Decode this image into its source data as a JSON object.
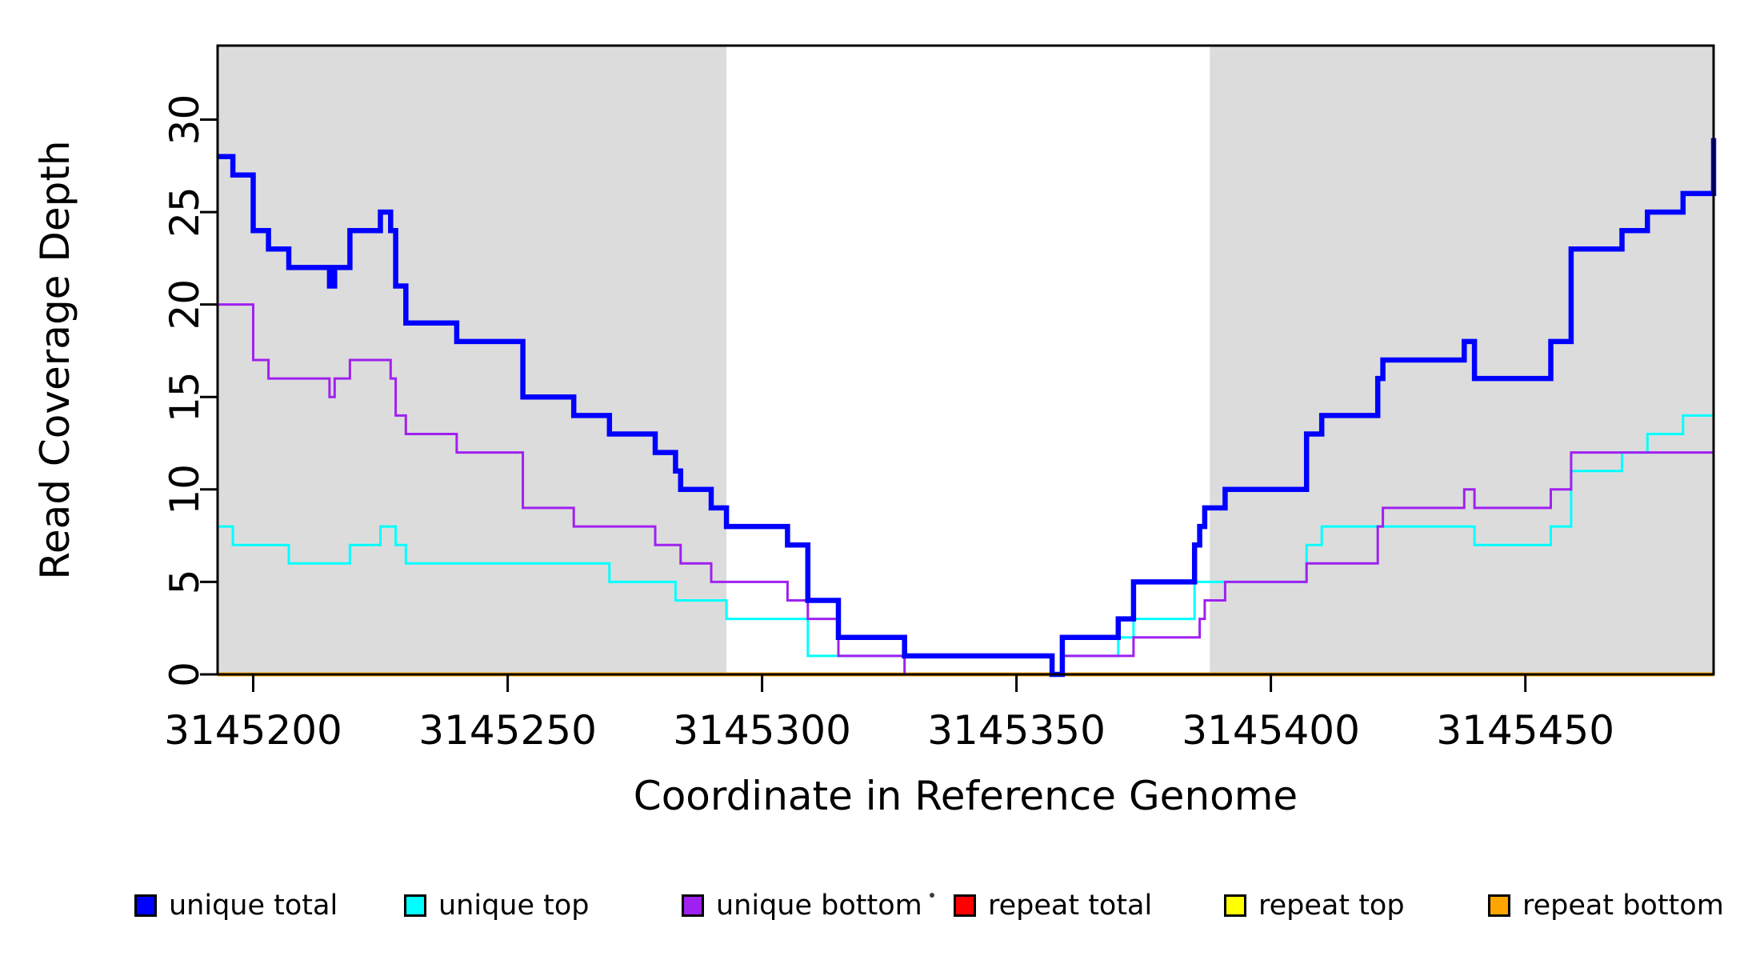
{
  "chart_data": {
    "type": "line",
    "subtype": "step-after",
    "title": "",
    "xlabel": "Coordinate in Reference Genome",
    "ylabel": "Read Coverage Depth",
    "xlim": [
      3145193,
      3145487
    ],
    "ylim": [
      0,
      34
    ],
    "x_ticks": [
      3145200,
      3145250,
      3145300,
      3145350,
      3145400,
      3145450
    ],
    "y_ticks": [
      0,
      5,
      10,
      15,
      20,
      25,
      30
    ],
    "grid": false,
    "legend_position": "bottom",
    "background_color": "#ffffff",
    "shaded_band_color": "#DCDCDC",
    "shaded_regions": [
      {
        "x0": 3145193,
        "x1": 3145293
      },
      {
        "x0": 3145388,
        "x1": 3145487
      }
    ],
    "draw_order": [
      "repeat total",
      "repeat top",
      "repeat bottom",
      "unique top",
      "unique bottom",
      "unique total"
    ],
    "series": [
      {
        "name": "unique total",
        "color": "#0000FF",
        "line_width": 6.5,
        "points": [
          [
            3145193,
            28
          ],
          [
            3145196,
            27
          ],
          [
            3145200,
            24
          ],
          [
            3145203,
            23
          ],
          [
            3145207,
            22
          ],
          [
            3145215,
            21
          ],
          [
            3145216,
            22
          ],
          [
            3145219,
            24
          ],
          [
            3145225,
            25
          ],
          [
            3145227,
            24
          ],
          [
            3145228,
            21
          ],
          [
            3145230,
            19
          ],
          [
            3145240,
            18
          ],
          [
            3145253,
            15
          ],
          [
            3145263,
            14
          ],
          [
            3145270,
            13
          ],
          [
            3145279,
            12
          ],
          [
            3145283,
            11
          ],
          [
            3145284,
            10
          ],
          [
            3145290,
            9
          ],
          [
            3145293,
            8
          ],
          [
            3145305,
            7
          ],
          [
            3145309,
            4
          ],
          [
            3145315,
            2
          ],
          [
            3145328,
            1
          ],
          [
            3145357,
            0
          ],
          [
            3145359,
            2
          ],
          [
            3145370,
            3
          ],
          [
            3145373,
            5
          ],
          [
            3145385,
            7
          ],
          [
            3145386,
            8
          ],
          [
            3145387,
            9
          ],
          [
            3145391,
            10
          ],
          [
            3145407,
            13
          ],
          [
            3145410,
            14
          ],
          [
            3145421,
            16
          ],
          [
            3145422,
            17
          ],
          [
            3145438,
            18
          ],
          [
            3145440,
            16
          ],
          [
            3145455,
            18
          ],
          [
            3145459,
            23
          ],
          [
            3145469,
            24
          ],
          [
            3145474,
            25
          ],
          [
            3145481,
            26
          ],
          [
            3145487,
            29
          ]
        ]
      },
      {
        "name": "unique top",
        "color": "#00FFFF",
        "line_width": 3,
        "points": [
          [
            3145193,
            8
          ],
          [
            3145196,
            7
          ],
          [
            3145207,
            6
          ],
          [
            3145219,
            7
          ],
          [
            3145225,
            8
          ],
          [
            3145228,
            7
          ],
          [
            3145230,
            6
          ],
          [
            3145270,
            5
          ],
          [
            3145283,
            4
          ],
          [
            3145293,
            3
          ],
          [
            3145309,
            1
          ],
          [
            3145357,
            0
          ],
          [
            3145359,
            1
          ],
          [
            3145370,
            2
          ],
          [
            3145373,
            3
          ],
          [
            3145385,
            5
          ],
          [
            3145407,
            7
          ],
          [
            3145410,
            8
          ],
          [
            3145440,
            7
          ],
          [
            3145455,
            8
          ],
          [
            3145459,
            11
          ],
          [
            3145469,
            12
          ],
          [
            3145474,
            13
          ],
          [
            3145481,
            14
          ],
          [
            3145487,
            17
          ]
        ]
      },
      {
        "name": "unique bottom",
        "color": "#A020F0",
        "line_width": 3,
        "points": [
          [
            3145193,
            20
          ],
          [
            3145200,
            17
          ],
          [
            3145203,
            16
          ],
          [
            3145215,
            15
          ],
          [
            3145216,
            16
          ],
          [
            3145219,
            17
          ],
          [
            3145227,
            16
          ],
          [
            3145228,
            14
          ],
          [
            3145230,
            13
          ],
          [
            3145240,
            12
          ],
          [
            3145253,
            9
          ],
          [
            3145263,
            8
          ],
          [
            3145279,
            7
          ],
          [
            3145284,
            6
          ],
          [
            3145290,
            5
          ],
          [
            3145305,
            4
          ],
          [
            3145309,
            3
          ],
          [
            3145315,
            1
          ],
          [
            3145328,
            0
          ],
          [
            3145359,
            1
          ],
          [
            3145373,
            2
          ],
          [
            3145386,
            3
          ],
          [
            3145387,
            4
          ],
          [
            3145391,
            5
          ],
          [
            3145407,
            6
          ],
          [
            3145421,
            8
          ],
          [
            3145422,
            9
          ],
          [
            3145438,
            10
          ],
          [
            3145440,
            9
          ],
          [
            3145455,
            10
          ],
          [
            3145459,
            12
          ],
          [
            3145487,
            12
          ]
        ]
      },
      {
        "name": "repeat total",
        "color": "#FF0000",
        "line_width": 3,
        "points": [
          [
            3145193,
            0
          ],
          [
            3145487,
            0
          ]
        ]
      },
      {
        "name": "repeat top",
        "color": "#FFFF00",
        "line_width": 3,
        "points": [
          [
            3145193,
            0
          ],
          [
            3145487,
            0
          ]
        ]
      },
      {
        "name": "repeat bottom",
        "color": "#FFA500",
        "line_width": 5,
        "points": [
          [
            3145193,
            0
          ],
          [
            3145487,
            0
          ]
        ]
      }
    ],
    "legend": [
      {
        "label": "unique total",
        "color": "#0000FF"
      },
      {
        "label": "unique top",
        "color": "#00FFFF"
      },
      {
        "label": "unique bottom",
        "color": "#A020F0"
      },
      {
        "label": "repeat total",
        "color": "#FF0000"
      },
      {
        "label": "repeat top",
        "color": "#FFFF00"
      },
      {
        "label": "repeat bottom",
        "color": "#FFA500"
      }
    ]
  }
}
